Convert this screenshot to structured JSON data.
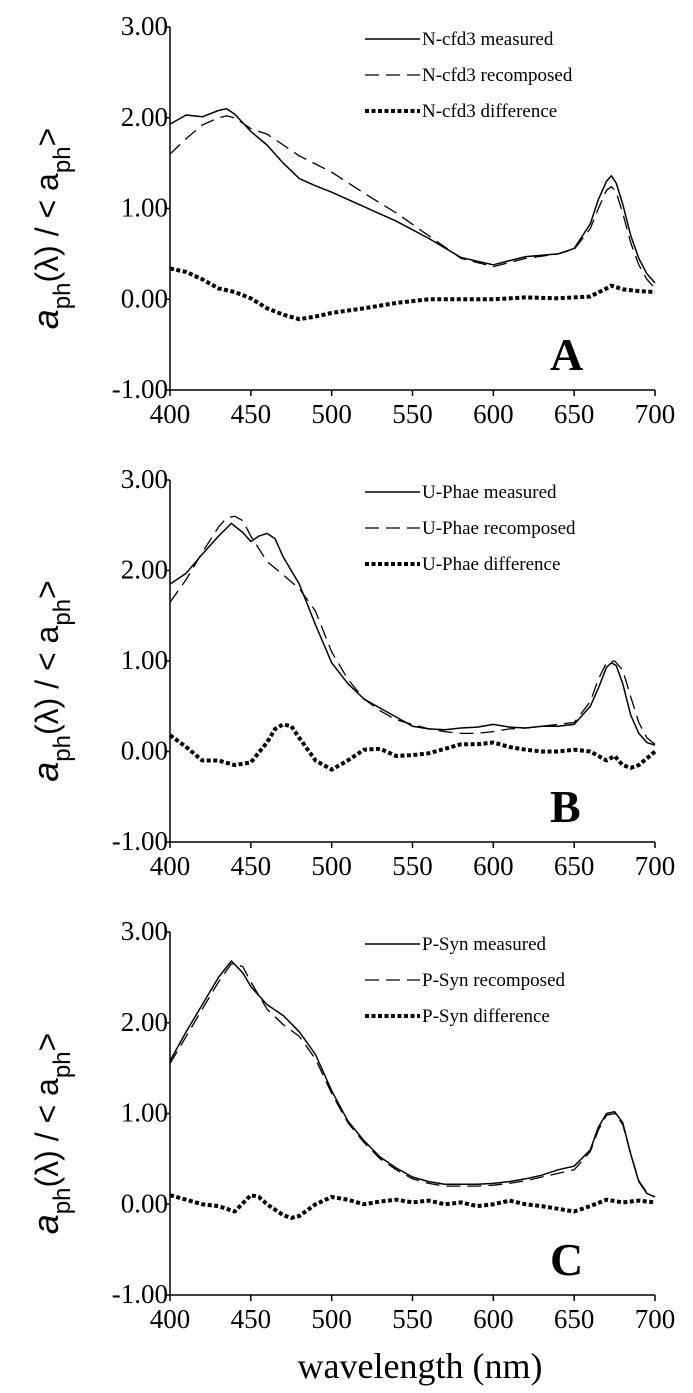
{
  "chart_data": [
    {
      "type": "line",
      "panel_label": "A",
      "xlim": [
        400,
        700
      ],
      "ylim": [
        -1.0,
        3.0
      ],
      "x_ticks": [
        "400",
        "450",
        "500",
        "550",
        "600",
        "650",
        "700"
      ],
      "y_ticks": [
        "-1.00",
        "0.00",
        "1.00",
        "2.00",
        "3.00"
      ],
      "ylabel": {
        "main": "a",
        "sub1": "ph",
        "mid": "(λ) / < a",
        "sub2": "ph",
        "end": ">"
      },
      "legend_position": "top-right",
      "series": [
        {
          "name": "N-cfd3 measured",
          "style": "solid",
          "x": [
            400,
            410,
            420,
            430,
            435,
            440,
            450,
            460,
            470,
            480,
            490,
            500,
            520,
            540,
            560,
            580,
            600,
            620,
            640,
            650,
            660,
            665,
            670,
            673,
            676,
            680,
            685,
            690,
            695,
            700
          ],
          "y": [
            1.93,
            2.03,
            2.01,
            2.08,
            2.1,
            2.04,
            1.85,
            1.7,
            1.5,
            1.33,
            1.25,
            1.18,
            1.02,
            0.86,
            0.67,
            0.46,
            0.38,
            0.47,
            0.5,
            0.56,
            0.83,
            1.1,
            1.3,
            1.36,
            1.28,
            1.05,
            0.7,
            0.45,
            0.28,
            0.18
          ]
        },
        {
          "name": "N-cfd3 recomposed",
          "style": "dashed",
          "x": [
            400,
            410,
            420,
            430,
            435,
            440,
            450,
            460,
            470,
            480,
            490,
            500,
            520,
            540,
            560,
            580,
            600,
            620,
            640,
            650,
            660,
            665,
            670,
            673,
            676,
            680,
            685,
            690,
            695,
            700
          ],
          "y": [
            1.6,
            1.77,
            1.92,
            2.0,
            2.02,
            2.0,
            1.88,
            1.82,
            1.7,
            1.58,
            1.49,
            1.4,
            1.17,
            0.95,
            0.7,
            0.45,
            0.36,
            0.45,
            0.5,
            0.55,
            0.78,
            1.0,
            1.2,
            1.24,
            1.18,
            0.95,
            0.62,
            0.38,
            0.22,
            0.12
          ]
        },
        {
          "name": "N-cfd3 difference",
          "style": "dotted",
          "x": [
            400,
            410,
            420,
            430,
            440,
            450,
            460,
            470,
            480,
            490,
            500,
            520,
            540,
            560,
            580,
            600,
            620,
            640,
            660,
            670,
            673,
            680,
            690,
            700
          ],
          "y": [
            0.34,
            0.3,
            0.22,
            0.12,
            0.08,
            0.01,
            -0.1,
            -0.17,
            -0.22,
            -0.19,
            -0.15,
            -0.1,
            -0.04,
            0.0,
            0.0,
            0.0,
            0.02,
            0.01,
            0.03,
            0.12,
            0.15,
            0.11,
            0.09,
            0.08
          ]
        }
      ]
    },
    {
      "type": "line",
      "panel_label": "B",
      "xlim": [
        400,
        700
      ],
      "ylim": [
        -1.0,
        3.0
      ],
      "x_ticks": [
        "400",
        "450",
        "500",
        "550",
        "600",
        "650",
        "700"
      ],
      "y_ticks": [
        "-1.00",
        "0.00",
        "1.00",
        "2.00",
        "3.00"
      ],
      "ylabel": {
        "main": "a",
        "sub1": "ph",
        "mid": "(λ) / < a",
        "sub2": "ph",
        "end": ">"
      },
      "legend_position": "top-right",
      "series": [
        {
          "name": "U-Phae measured",
          "style": "solid",
          "x": [
            400,
            410,
            420,
            430,
            438,
            445,
            450,
            455,
            460,
            465,
            470,
            480,
            490,
            500,
            510,
            520,
            530,
            540,
            550,
            560,
            570,
            580,
            590,
            600,
            610,
            620,
            630,
            640,
            650,
            660,
            665,
            670,
            673,
            676,
            680,
            685,
            690,
            695,
            700
          ],
          "y": [
            1.85,
            1.97,
            2.18,
            2.38,
            2.52,
            2.42,
            2.32,
            2.38,
            2.41,
            2.35,
            2.15,
            1.85,
            1.4,
            0.98,
            0.75,
            0.58,
            0.48,
            0.38,
            0.28,
            0.25,
            0.24,
            0.26,
            0.27,
            0.3,
            0.27,
            0.26,
            0.28,
            0.28,
            0.3,
            0.5,
            0.7,
            0.93,
            0.98,
            0.95,
            0.75,
            0.4,
            0.2,
            0.1,
            0.07
          ]
        },
        {
          "name": "U-Phae recomposed",
          "style": "dashed",
          "x": [
            400,
            410,
            420,
            430,
            435,
            440,
            445,
            450,
            460,
            470,
            480,
            490,
            500,
            510,
            520,
            530,
            540,
            550,
            560,
            570,
            580,
            590,
            600,
            610,
            620,
            630,
            640,
            650,
            660,
            665,
            670,
            675,
            680,
            685,
            690,
            695,
            700
          ],
          "y": [
            1.65,
            1.9,
            2.2,
            2.48,
            2.58,
            2.6,
            2.55,
            2.38,
            2.1,
            1.95,
            1.8,
            1.55,
            1.1,
            0.8,
            0.58,
            0.45,
            0.35,
            0.3,
            0.25,
            0.22,
            0.2,
            0.2,
            0.22,
            0.25,
            0.26,
            0.28,
            0.3,
            0.32,
            0.55,
            0.8,
            0.98,
            1.0,
            0.9,
            0.6,
            0.32,
            0.15,
            0.08
          ]
        },
        {
          "name": "U-Phae difference",
          "style": "dotted",
          "x": [
            400,
            410,
            420,
            430,
            440,
            450,
            460,
            465,
            470,
            475,
            480,
            490,
            500,
            510,
            520,
            530,
            540,
            550,
            560,
            570,
            580,
            590,
            600,
            610,
            620,
            630,
            640,
            650,
            660,
            670,
            675,
            680,
            685,
            690,
            700
          ],
          "y": [
            0.18,
            0.05,
            -0.1,
            -0.1,
            -0.15,
            -0.12,
            0.1,
            0.25,
            0.3,
            0.28,
            0.15,
            -0.1,
            -0.2,
            -0.1,
            0.02,
            0.03,
            -0.05,
            -0.04,
            -0.02,
            0.03,
            0.08,
            0.08,
            0.1,
            0.05,
            0.02,
            0.0,
            0.0,
            0.02,
            0.0,
            -0.1,
            -0.05,
            -0.15,
            -0.18,
            -0.15,
            0.0
          ]
        }
      ]
    },
    {
      "type": "line",
      "panel_label": "C",
      "xlim": [
        400,
        700
      ],
      "ylim": [
        -1.0,
        3.0
      ],
      "x_ticks": [
        "400",
        "450",
        "500",
        "550",
        "600",
        "650",
        "700"
      ],
      "y_ticks": [
        "-1.00",
        "0.00",
        "1.00",
        "2.00",
        "3.00"
      ],
      "ylabel": {
        "main": "a",
        "sub1": "ph",
        "mid": "(λ) / < a",
        "sub2": "ph",
        "end": ">"
      },
      "legend_position": "top-right",
      "series": [
        {
          "name": "P-Syn measured",
          "style": "solid",
          "x": [
            400,
            410,
            420,
            430,
            438,
            445,
            450,
            460,
            470,
            480,
            490,
            500,
            510,
            520,
            530,
            540,
            550,
            560,
            570,
            580,
            590,
            600,
            610,
            620,
            630,
            640,
            650,
            660,
            665,
            670,
            675,
            680,
            685,
            690,
            695,
            700
          ],
          "y": [
            1.58,
            1.9,
            2.2,
            2.5,
            2.68,
            2.55,
            2.4,
            2.2,
            2.08,
            1.9,
            1.65,
            1.25,
            0.92,
            0.7,
            0.52,
            0.4,
            0.3,
            0.25,
            0.22,
            0.22,
            0.22,
            0.23,
            0.25,
            0.28,
            0.32,
            0.38,
            0.42,
            0.6,
            0.85,
            1.0,
            1.02,
            0.9,
            0.55,
            0.25,
            0.12,
            0.08
          ]
        },
        {
          "name": "P-Syn recomposed",
          "style": "dashed",
          "x": [
            400,
            410,
            420,
            430,
            438,
            445,
            450,
            460,
            470,
            480,
            490,
            500,
            510,
            520,
            530,
            540,
            550,
            560,
            570,
            580,
            590,
            600,
            610,
            620,
            630,
            640,
            650,
            660,
            665,
            670,
            675,
            680,
            685,
            690,
            695,
            700
          ],
          "y": [
            1.55,
            1.85,
            2.15,
            2.45,
            2.65,
            2.62,
            2.45,
            2.15,
            1.98,
            1.85,
            1.6,
            1.22,
            0.9,
            0.68,
            0.5,
            0.38,
            0.28,
            0.23,
            0.2,
            0.2,
            0.2,
            0.21,
            0.23,
            0.26,
            0.3,
            0.34,
            0.38,
            0.58,
            0.82,
            0.98,
            1.0,
            0.88,
            0.55,
            0.26,
            0.13,
            0.08
          ]
        },
        {
          "name": "P-Syn difference",
          "style": "dotted",
          "x": [
            400,
            410,
            420,
            430,
            440,
            450,
            455,
            460,
            470,
            475,
            480,
            490,
            500,
            510,
            520,
            530,
            540,
            550,
            560,
            570,
            580,
            590,
            600,
            610,
            620,
            630,
            640,
            650,
            660,
            670,
            680,
            690,
            700
          ],
          "y": [
            0.1,
            0.05,
            0.0,
            -0.02,
            -0.08,
            0.1,
            0.08,
            0.0,
            -0.12,
            -0.15,
            -0.13,
            0.0,
            0.08,
            0.05,
            0.0,
            0.03,
            0.05,
            0.02,
            0.04,
            0.0,
            0.02,
            -0.02,
            0.0,
            0.04,
            0.0,
            -0.02,
            -0.05,
            -0.08,
            -0.02,
            0.05,
            0.02,
            0.04,
            0.02
          ]
        }
      ]
    }
  ],
  "shared_xlabel": "wavelength (nm)"
}
